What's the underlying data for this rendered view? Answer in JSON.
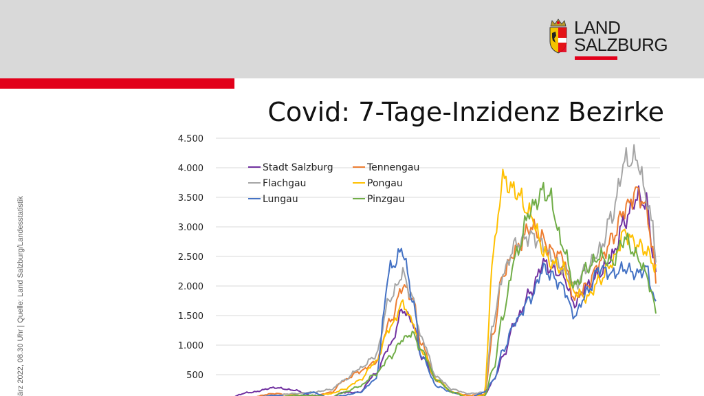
{
  "slide": {
    "title": "Covid: 7-Tage-Inzidenz Bezirke",
    "side_note": "ärz 2022, 08.30 Uhr  |  Quelle: Land Salzburg/Landesstatistik",
    "logo_line1": "LAND",
    "logo_line2": "SALZBURG",
    "accent_color": "#e2001a",
    "header_color": "#d9d9d9"
  },
  "chart_data": {
    "type": "line",
    "ylim": [
      0,
      4500
    ],
    "y_ticks": [
      "500",
      "1.000",
      "1.500",
      "2.000",
      "2.500",
      "3.000",
      "3.500",
      "4.000",
      "4.500"
    ],
    "grid": "horizontal",
    "legend_position": "top-left",
    "x_count": 120,
    "series": [
      {
        "name": "Stadt Salzburg",
        "color": "#7030a0",
        "anchors": [
          [
            0,
            50
          ],
          [
            10,
            200
          ],
          [
            18,
            280
          ],
          [
            24,
            240
          ],
          [
            30,
            150
          ],
          [
            36,
            120
          ],
          [
            40,
            200
          ],
          [
            45,
            200
          ],
          [
            50,
            500
          ],
          [
            55,
            1000
          ],
          [
            59,
            1600
          ],
          [
            62,
            1400
          ],
          [
            65,
            800
          ],
          [
            70,
            400
          ],
          [
            75,
            200
          ],
          [
            80,
            120
          ],
          [
            85,
            150
          ],
          [
            88,
            400
          ],
          [
            91,
            800
          ],
          [
            95,
            1400
          ],
          [
            100,
            1900
          ],
          [
            104,
            2400
          ],
          [
            106,
            2300
          ],
          [
            110,
            2200
          ],
          [
            114,
            1700
          ],
          [
            118,
            2000
          ],
          [
            122,
            2200
          ],
          [
            126,
            2500
          ],
          [
            130,
            3100
          ],
          [
            134,
            3500
          ],
          [
            137,
            3400
          ],
          [
            139,
            2600
          ],
          [
            140,
            2200
          ]
        ]
      },
      {
        "name": "Tennengau",
        "color": "#ed7d31",
        "anchors": [
          [
            0,
            30
          ],
          [
            10,
            120
          ],
          [
            18,
            180
          ],
          [
            24,
            160
          ],
          [
            30,
            130
          ],
          [
            36,
            200
          ],
          [
            40,
            400
          ],
          [
            45,
            550
          ],
          [
            50,
            700
          ],
          [
            55,
            1400
          ],
          [
            59,
            2000
          ],
          [
            62,
            1800
          ],
          [
            65,
            1000
          ],
          [
            70,
            400
          ],
          [
            75,
            200
          ],
          [
            80,
            150
          ],
          [
            85,
            160
          ],
          [
            88,
            1200
          ],
          [
            91,
            2200
          ],
          [
            95,
            2600
          ],
          [
            100,
            3000
          ],
          [
            104,
            2800
          ],
          [
            106,
            2600
          ],
          [
            110,
            2500
          ],
          [
            114,
            1800
          ],
          [
            118,
            2000
          ],
          [
            122,
            2400
          ],
          [
            126,
            2800
          ],
          [
            130,
            3300
          ],
          [
            134,
            3600
          ],
          [
            137,
            3300
          ],
          [
            139,
            2600
          ],
          [
            140,
            2100
          ]
        ]
      },
      {
        "name": "Flachgau",
        "color": "#a5a5a5",
        "anchors": [
          [
            0,
            20
          ],
          [
            10,
            100
          ],
          [
            18,
            150
          ],
          [
            24,
            180
          ],
          [
            30,
            200
          ],
          [
            36,
            250
          ],
          [
            40,
            400
          ],
          [
            45,
            600
          ],
          [
            50,
            800
          ],
          [
            55,
            1800
          ],
          [
            59,
            2200
          ],
          [
            62,
            1800
          ],
          [
            65,
            1100
          ],
          [
            70,
            450
          ],
          [
            75,
            250
          ],
          [
            80,
            180
          ],
          [
            85,
            200
          ],
          [
            88,
            1400
          ],
          [
            91,
            2200
          ],
          [
            95,
            2700
          ],
          [
            100,
            2850
          ],
          [
            104,
            2700
          ],
          [
            106,
            2500
          ],
          [
            110,
            2300
          ],
          [
            114,
            2000
          ],
          [
            118,
            2300
          ],
          [
            122,
            2600
          ],
          [
            126,
            3200
          ],
          [
            130,
            4100
          ],
          [
            134,
            4150
          ],
          [
            137,
            3500
          ],
          [
            139,
            3000
          ],
          [
            140,
            2500
          ]
        ]
      },
      {
        "name": "Pongau",
        "color": "#ffc000",
        "anchors": [
          [
            0,
            10
          ],
          [
            10,
            80
          ],
          [
            18,
            120
          ],
          [
            24,
            150
          ],
          [
            30,
            130
          ],
          [
            36,
            180
          ],
          [
            40,
            250
          ],
          [
            45,
            400
          ],
          [
            50,
            700
          ],
          [
            55,
            1300
          ],
          [
            59,
            1700
          ],
          [
            62,
            1400
          ],
          [
            65,
            900
          ],
          [
            70,
            400
          ],
          [
            75,
            200
          ],
          [
            80,
            130
          ],
          [
            85,
            150
          ],
          [
            88,
            2600
          ],
          [
            91,
            3800
          ],
          [
            95,
            3600
          ],
          [
            100,
            3200
          ],
          [
            104,
            2600
          ],
          [
            106,
            2400
          ],
          [
            110,
            2300
          ],
          [
            114,
            1900
          ],
          [
            118,
            1800
          ],
          [
            122,
            2100
          ],
          [
            126,
            2400
          ],
          [
            130,
            2900
          ],
          [
            134,
            2700
          ],
          [
            137,
            2600
          ],
          [
            139,
            2400
          ],
          [
            140,
            2300
          ]
        ]
      },
      {
        "name": "Lungau",
        "color": "#4472c4",
        "anchors": [
          [
            0,
            10
          ],
          [
            10,
            100
          ],
          [
            18,
            150
          ],
          [
            24,
            120
          ],
          [
            30,
            200
          ],
          [
            36,
            100
          ],
          [
            40,
            150
          ],
          [
            45,
            200
          ],
          [
            50,
            400
          ],
          [
            55,
            2300
          ],
          [
            59,
            2600
          ],
          [
            62,
            1800
          ],
          [
            65,
            800
          ],
          [
            70,
            300
          ],
          [
            75,
            200
          ],
          [
            80,
            100
          ],
          [
            85,
            200
          ],
          [
            88,
            400
          ],
          [
            91,
            900
          ],
          [
            95,
            1400
          ],
          [
            100,
            1800
          ],
          [
            104,
            2300
          ],
          [
            106,
            2200
          ],
          [
            110,
            2000
          ],
          [
            114,
            1500
          ],
          [
            118,
            1900
          ],
          [
            122,
            2300
          ],
          [
            126,
            2200
          ],
          [
            130,
            2300
          ],
          [
            134,
            2200
          ],
          [
            137,
            2300
          ],
          [
            139,
            1900
          ],
          [
            140,
            1650
          ]
        ]
      },
      {
        "name": "Pinzgau",
        "color": "#70ad47",
        "anchors": [
          [
            0,
            10
          ],
          [
            10,
            90
          ],
          [
            18,
            100
          ],
          [
            24,
            150
          ],
          [
            30,
            150
          ],
          [
            36,
            120
          ],
          [
            40,
            200
          ],
          [
            45,
            300
          ],
          [
            50,
            500
          ],
          [
            55,
            800
          ],
          [
            59,
            1100
          ],
          [
            62,
            1200
          ],
          [
            65,
            900
          ],
          [
            70,
            400
          ],
          [
            75,
            200
          ],
          [
            80,
            110
          ],
          [
            85,
            130
          ],
          [
            88,
            600
          ],
          [
            91,
            1500
          ],
          [
            95,
            2500
          ],
          [
            100,
            3300
          ],
          [
            104,
            3600
          ],
          [
            106,
            3500
          ],
          [
            110,
            2700
          ],
          [
            114,
            2000
          ],
          [
            118,
            2300
          ],
          [
            122,
            2500
          ],
          [
            126,
            2400
          ],
          [
            130,
            2800
          ],
          [
            134,
            2500
          ],
          [
            137,
            2200
          ],
          [
            139,
            1800
          ],
          [
            140,
            1550
          ]
        ]
      }
    ]
  }
}
